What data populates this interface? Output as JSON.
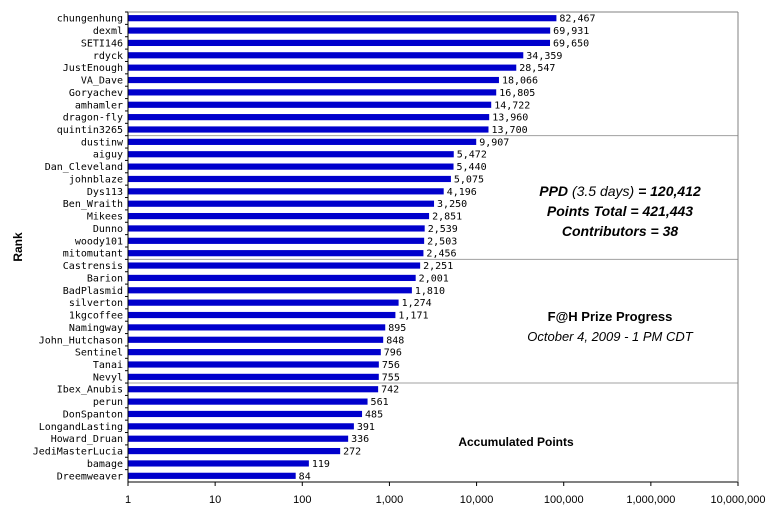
{
  "chart_data": {
    "type": "bar",
    "orientation": "horizontal",
    "scale": "log",
    "xlim": [
      1,
      10000000
    ],
    "x_ticks": [
      "1",
      "10",
      "100",
      "1,000",
      "10,000",
      "100,000",
      "1,000,000",
      "10,000,000"
    ],
    "categories": [
      "chungenhung",
      "dexml",
      "SETI146",
      "rdyck",
      "JustEnough",
      "VA_Dave",
      "Goryachev",
      "amhamler",
      "dragon-fly",
      "quintin3265",
      "dustinw",
      "aiguy",
      "Dan_Cleveland",
      "johnblaze",
      "Dys113",
      "Ben_Wraith",
      "Mikees",
      "Dunno",
      "woody101",
      "mitomutant",
      "Castrensis",
      "Barion",
      "BadPlasmid",
      "silverton",
      "1kgcoffee",
      "Namingway",
      "John_Hutchason",
      "Sentinel",
      "Tanai",
      "Nevyl",
      "Ibex_Anubis",
      "perun",
      "DonSpanton",
      "LongandLasting",
      "Howard_Druan",
      "JediMasterLucia",
      "bamage",
      "Dreemweaver"
    ],
    "values": [
      82467,
      69931,
      69650,
      34359,
      28547,
      18066,
      16805,
      14722,
      13960,
      13700,
      9907,
      5472,
      5440,
      5075,
      4196,
      3250,
      2851,
      2539,
      2503,
      2456,
      2251,
      2001,
      1810,
      1274,
      1171,
      895,
      848,
      796,
      756,
      755,
      742,
      561,
      485,
      391,
      336,
      272,
      119,
      84
    ],
    "value_labels": [
      "82,467",
      "69,931",
      "69,650",
      "34,359",
      "28,547",
      "18,066",
      "16,805",
      "14,722",
      "13,960",
      "13,700",
      "9,907",
      "5,472",
      "5,440",
      "5,075",
      "4,196",
      "3,250",
      "2,851",
      "2,539",
      "2,503",
      "2,456",
      "2,251",
      "2,001",
      "1,810",
      "1,274",
      "1,171",
      "895",
      "848",
      "796",
      "756",
      "755",
      "742",
      "561",
      "485",
      "391",
      "336",
      "272",
      "119",
      "84"
    ],
    "ylabel": "Rank",
    "xlabel": "Accumulated Points",
    "bar_color": "#0000cc",
    "grid": "horizontal lines every 10 ranks",
    "legend": "none"
  },
  "annotations": {
    "ppd_label": "PPD",
    "ppd_days": "(3.5 days)",
    "ppd_value": "= 120,412",
    "points_total": "Points Total = 421,443",
    "contributors": "Contributors = 38",
    "prize_title": "F@H Prize Progress",
    "prize_date": "October 4, 2009 - 1 PM CDT"
  }
}
